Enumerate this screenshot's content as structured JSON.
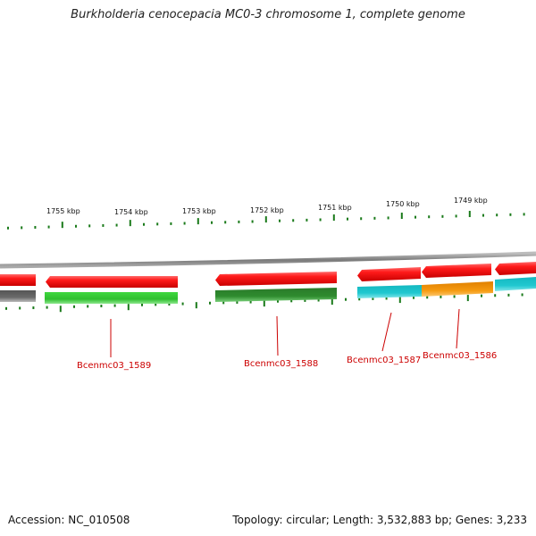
{
  "header": {
    "title": "Burkholderia cenocepacia MC0-3 chromosome 1, complete genome"
  },
  "footer": {
    "accession": "Accession: NC_010508",
    "stats": "Topology: circular; Length: 3,532,883 bp; Genes: 3,233"
  },
  "map": {
    "position_labels": [
      {
        "text": "1755 kbp"
      },
      {
        "text": "1754 kbp"
      },
      {
        "text": "1753 kbp"
      },
      {
        "text": "1752 kbp"
      },
      {
        "text": "1751 kbp"
      },
      {
        "text": "1750 kbp"
      },
      {
        "text": "1749 kbp"
      }
    ],
    "gene_labels": [
      {
        "text": "Bcenmc03_1589"
      },
      {
        "text": "Bcenmc03_1588"
      },
      {
        "text": "Bcenmc03_1587"
      },
      {
        "text": "Bcenmc03_1586"
      }
    ]
  },
  "colors": {
    "backbone": "#888888",
    "cds_feature": "#ee1111",
    "cog_green": "#33cc33",
    "cog_darkgreen": "#2e8b2e",
    "cog_cyan": "#22c8d0",
    "cog_orange": "#f59a10",
    "cog_gray": "#666666",
    "tick": "#1a7a1a",
    "gene_label": "#cc0000"
  }
}
